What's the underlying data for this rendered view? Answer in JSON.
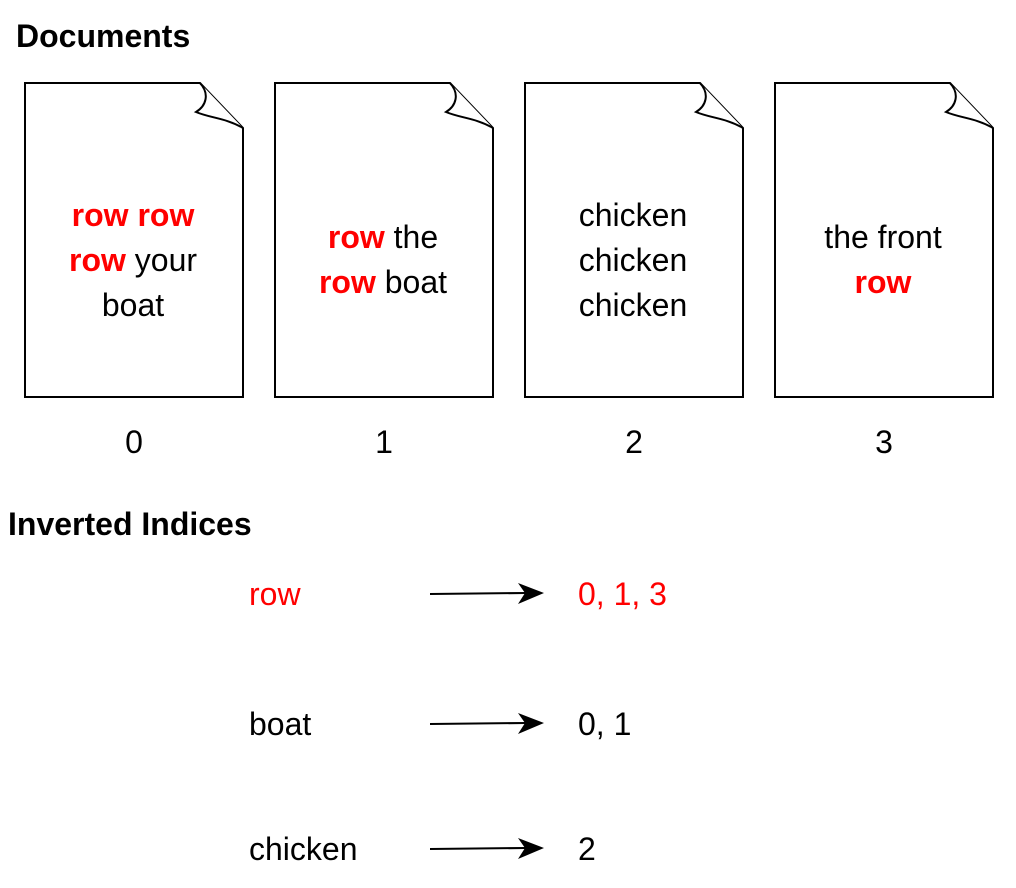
{
  "documents_title": "Documents",
  "documents": [
    {
      "index_label": "0",
      "words": [
        {
          "text": "row",
          "highlight": true
        },
        {
          "text": "row",
          "highlight": true
        },
        {
          "br": true
        },
        {
          "text": "row",
          "highlight": true
        },
        {
          "text": "your",
          "highlight": false
        },
        {
          "br": true
        },
        {
          "text": "boat",
          "highlight": false
        }
      ]
    },
    {
      "index_label": "1",
      "words": [
        {
          "text": "row",
          "highlight": true
        },
        {
          "text": "the",
          "highlight": false
        },
        {
          "br": true
        },
        {
          "text": "row",
          "highlight": true
        },
        {
          "text": "boat",
          "highlight": false
        }
      ]
    },
    {
      "index_label": "2",
      "words": [
        {
          "text": "chicken",
          "highlight": false
        },
        {
          "br": true
        },
        {
          "text": "chicken",
          "highlight": false
        },
        {
          "br": true
        },
        {
          "text": "chicken",
          "highlight": false
        }
      ]
    },
    {
      "index_label": "3",
      "words": [
        {
          "text": "the",
          "highlight": false
        },
        {
          "text": "front",
          "highlight": false
        },
        {
          "br": true
        },
        {
          "text": "row",
          "highlight": true
        }
      ]
    }
  ],
  "inverted_title": "Inverted Indices",
  "inverted_index": [
    {
      "term": "row",
      "postings": "0, 1, 3",
      "highlight": true
    },
    {
      "term": "boat",
      "postings": "0, 1",
      "highlight": false
    },
    {
      "term": "chicken",
      "postings": "2",
      "highlight": false
    }
  ],
  "colors": {
    "highlight": "#ff0000",
    "text": "#000000",
    "stroke": "#000000",
    "background": "#ffffff"
  }
}
